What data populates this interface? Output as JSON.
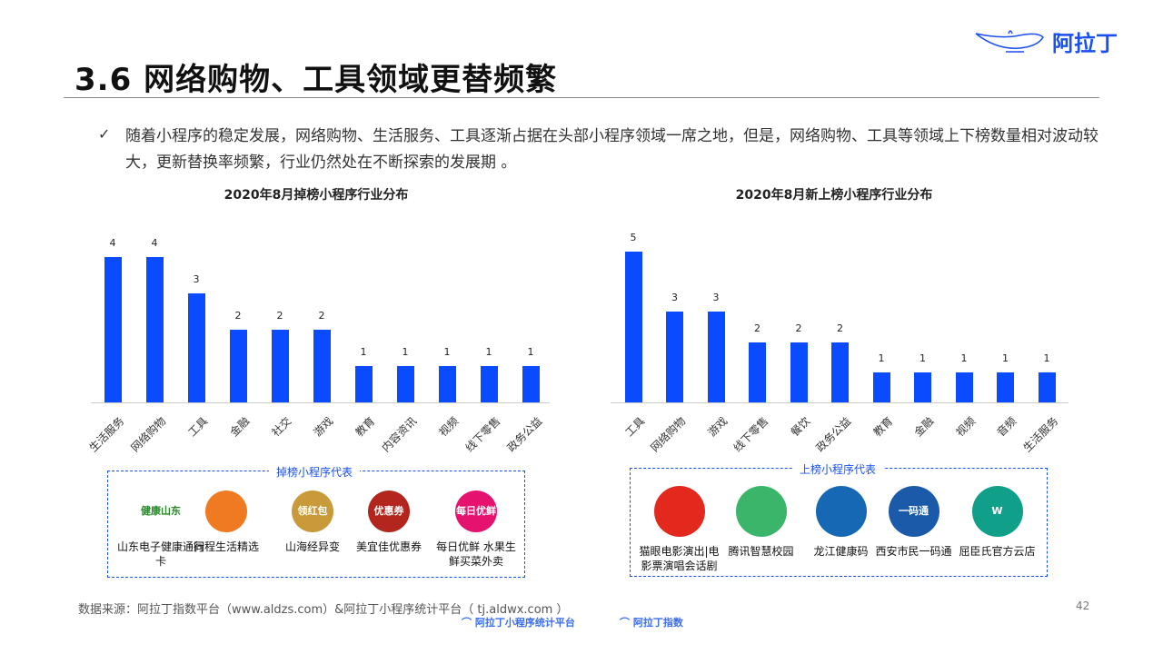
{
  "header": {
    "title": "3.6 网络购物、工具领域更替频繁",
    "logo_text": "阿拉丁",
    "bullet_icon": "checkmark-icon",
    "paragraph": "随着小程序的稳定发展，网络购物、生活服务、工具逐渐占据在头部小程序领域一席之地，但是，网络购物、工具等领域上下榜数量相对波动较大，更新替换率频繁，行业仍然处在不断探索的发展期 。"
  },
  "chart_data": [
    {
      "type": "bar",
      "title": "2020年8月掉榜小程序行业分布",
      "categories": [
        "生活服务",
        "网络购物",
        "工具",
        "金融",
        "社交",
        "游戏",
        "教育",
        "内容资讯",
        "视频",
        "线下零售",
        "政务公益"
      ],
      "values": [
        4,
        4,
        3,
        2,
        2,
        2,
        1,
        1,
        1,
        1,
        1
      ],
      "ylim": [
        0,
        4
      ],
      "color": "#0a4bff",
      "grid": false
    },
    {
      "type": "bar",
      "title": "2020年8月新上榜小程序行业分布",
      "categories": [
        "工具",
        "网络购物",
        "游戏",
        "线下零售",
        "餐饮",
        "政务公益",
        "教育",
        "金融",
        "视频",
        "音频",
        "生活服务"
      ],
      "values": [
        5,
        3,
        3,
        2,
        2,
        2,
        1,
        1,
        1,
        1,
        1
      ],
      "ylim": [
        0,
        5
      ],
      "color": "#0a4bff",
      "grid": false
    }
  ],
  "dropped": {
    "title": "掉榜小程序代表",
    "apps": [
      {
        "name": "山东电子健康通行卡",
        "icon_text": "健康山东",
        "color": "#ffffff"
      },
      {
        "name": "同程生活精选",
        "icon_text": "",
        "color": "#f07a22"
      },
      {
        "name": "山海经异变",
        "icon_text": "领红包",
        "color": "#c89a3a"
      },
      {
        "name": "美宜佳优惠券",
        "icon_text": "优惠券",
        "color": "#b3261e"
      },
      {
        "name": "每日优鲜 水果生鲜买菜外卖",
        "icon_text": "每日优鲜",
        "color": "#e5136f"
      }
    ]
  },
  "added": {
    "title": "上榜小程序代表",
    "apps": [
      {
        "name": "猫眼电影演出|电影票演唱会话剧",
        "icon_text": "",
        "color": "#e3291d"
      },
      {
        "name": "腾讯智慧校园",
        "icon_text": "",
        "color": "#3bb56a"
      },
      {
        "name": "龙江健康码",
        "icon_text": "",
        "color": "#1668b4"
      },
      {
        "name": "西安市民一码通",
        "icon_text": "一码通",
        "color": "#1a5aa8"
      },
      {
        "name": "屈臣氏官方云店",
        "icon_text": "W",
        "color": "#10a08a"
      }
    ]
  },
  "footer": {
    "source": "数据来源：阿拉丁指数平台（www.aldzs.com）&阿拉丁小程序统计平台（  tj.aldwx.com  ）",
    "page": "42",
    "logo1": "阿拉丁小程序统计平台",
    "logo2": "阿拉丁指数"
  }
}
